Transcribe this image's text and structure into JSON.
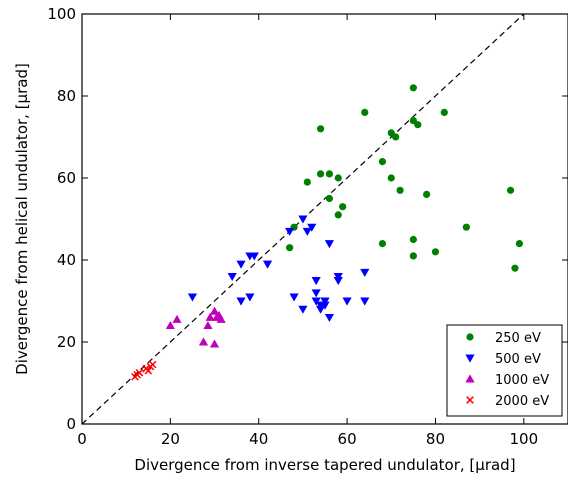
{
  "chart_data": {
    "type": "scatter",
    "xlabel": "Divergence from inverse tapered undulator, [μrad]",
    "ylabel": "Divergence from helical undulator, [μrad]",
    "xlim": [
      0,
      110
    ],
    "ylim": [
      0,
      100
    ],
    "xticks": [
      "0",
      "20",
      "40",
      "60",
      "80",
      "100"
    ],
    "yticks": [
      "0",
      "20",
      "40",
      "60",
      "80",
      "100"
    ],
    "grid": false,
    "legend_position": "bottom-right",
    "reference_line": {
      "style": "dashed",
      "from": [
        0,
        0
      ],
      "to": [
        100,
        100
      ]
    },
    "series": [
      {
        "name": "250 eV",
        "marker": "circle",
        "color": "#008000",
        "points": [
          [
            47,
            43
          ],
          [
            48,
            48
          ],
          [
            51,
            59
          ],
          [
            54,
            72
          ],
          [
            54,
            61
          ],
          [
            56,
            61
          ],
          [
            56,
            55
          ],
          [
            58,
            60
          ],
          [
            58,
            51
          ],
          [
            59,
            53
          ],
          [
            64,
            76
          ],
          [
            68,
            64
          ],
          [
            68,
            44
          ],
          [
            70,
            71
          ],
          [
            70,
            60
          ],
          [
            71,
            70
          ],
          [
            72,
            57
          ],
          [
            75,
            82
          ],
          [
            75,
            74
          ],
          [
            76,
            73
          ],
          [
            75,
            45
          ],
          [
            75,
            41
          ],
          [
            78,
            56
          ],
          [
            80,
            42
          ],
          [
            82,
            76
          ],
          [
            87,
            48
          ],
          [
            97,
            57
          ],
          [
            98,
            38
          ],
          [
            99,
            44
          ]
        ]
      },
      {
        "name": "500 eV",
        "marker": "triangle-down",
        "color": "#0000ff",
        "points": [
          [
            25,
            31
          ],
          [
            34,
            36
          ],
          [
            36,
            30
          ],
          [
            36,
            39
          ],
          [
            38,
            31
          ],
          [
            38,
            41
          ],
          [
            39,
            41
          ],
          [
            42,
            39
          ],
          [
            47,
            47
          ],
          [
            48,
            31
          ],
          [
            50,
            50
          ],
          [
            50,
            28
          ],
          [
            51,
            47
          ],
          [
            52,
            48
          ],
          [
            53,
            35
          ],
          [
            53,
            32
          ],
          [
            53,
            30
          ],
          [
            54,
            29
          ],
          [
            54,
            28
          ],
          [
            55,
            29
          ],
          [
            55,
            30
          ],
          [
            56,
            44
          ],
          [
            56,
            26
          ],
          [
            58,
            36
          ],
          [
            58,
            35
          ],
          [
            60,
            30
          ],
          [
            64,
            37
          ],
          [
            64,
            30
          ]
        ]
      },
      {
        "name": "1000 eV",
        "marker": "triangle-up",
        "color": "#bf00bf",
        "points": [
          [
            20,
            24
          ],
          [
            21.5,
            25.5
          ],
          [
            27.5,
            20
          ],
          [
            28.5,
            24
          ],
          [
            29,
            26
          ],
          [
            30,
            27.5
          ],
          [
            30,
            19.5
          ],
          [
            30.5,
            26
          ],
          [
            31,
            26.5
          ],
          [
            31.5,
            25.5
          ]
        ]
      },
      {
        "name": "2000 eV",
        "marker": "x",
        "color": "#ff0000",
        "points": [
          [
            12,
            11.5
          ],
          [
            12.5,
            12
          ],
          [
            13,
            12.5
          ],
          [
            14.5,
            13.5
          ],
          [
            15,
            13
          ],
          [
            15.5,
            14
          ],
          [
            16,
            14.5
          ]
        ]
      }
    ]
  }
}
